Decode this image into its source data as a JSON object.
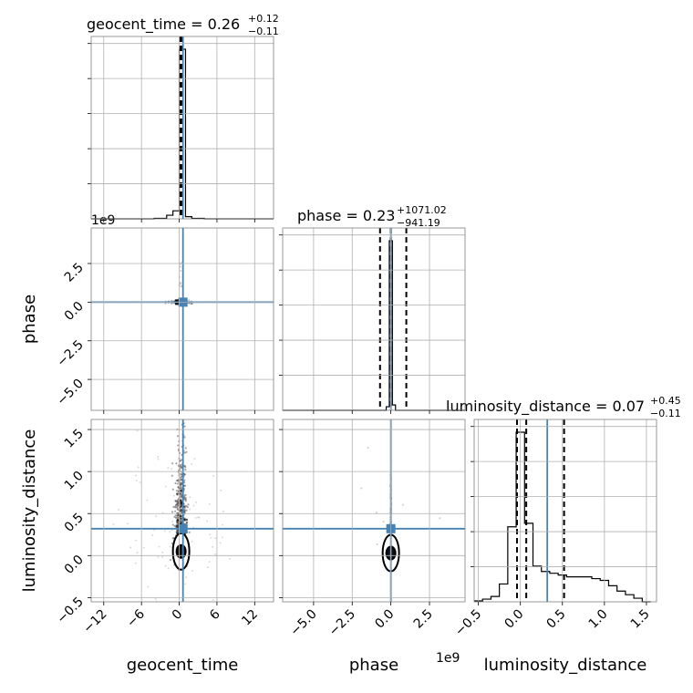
{
  "chart_data": {
    "type": "corner",
    "parameters": [
      "geocent_time",
      "phase",
      "luminosity_distance"
    ],
    "truth_color": "#4682b4",
    "hist_color": "#000000",
    "titles": [
      {
        "name": "geocent_time",
        "median": "0.26",
        "plus": "+0.12",
        "minus": "−0.11"
      },
      {
        "name": "phase",
        "median": "0.23",
        "plus": "+1071.02",
        "minus": "−941.19"
      },
      {
        "name": "luminosity_distance",
        "median": "0.07",
        "plus": "+0.45",
        "minus": "−0.11"
      }
    ],
    "offset_labels": {
      "phase_axis": "1e9"
    },
    "truths": {
      "geocent_time": 0.6,
      "phase": 0.0,
      "luminosity_distance": 0.32
    },
    "axes": {
      "geocent_time": {
        "lim": [
          -14,
          15
        ],
        "ticks": [
          -12,
          -6,
          0,
          6,
          12
        ],
        "tick_labels": [
          "−12",
          "−6",
          "0",
          "6",
          "12"
        ]
      },
      "phase": {
        "lim": [
          -7.0,
          4.8
        ],
        "ticks": [
          -5.0,
          -2.5,
          0.0,
          2.5
        ],
        "tick_labels": [
          "−5.0",
          "−2.5",
          "0.0",
          "2.5"
        ]
      },
      "luminosity_distance": {
        "lim": [
          -0.55,
          1.62
        ],
        "ticks": [
          -0.5,
          0.0,
          0.5,
          1.0,
          1.5
        ],
        "tick_labels": [
          "−0.5",
          "0.0",
          "0.5",
          "1.0",
          "1.5"
        ]
      }
    },
    "histograms": {
      "geocent_time": {
        "edges": [
          -14,
          -12,
          -10,
          -8,
          -6,
          -4,
          -2,
          -1,
          0,
          1,
          2,
          4,
          6,
          8,
          10,
          12,
          15
        ],
        "counts": [
          0,
          0,
          0,
          0,
          0,
          0.003,
          0.02,
          0.045,
          0.95,
          0.012,
          0.003,
          0,
          0,
          0,
          0,
          0
        ],
        "quantiles": [
          0.15,
          0.26,
          0.38
        ]
      },
      "phase": {
        "edges": [
          -7.0,
          -0.3,
          -0.1,
          0.1,
          0.3,
          4.8
        ],
        "counts": [
          0,
          0.02,
          0.95,
          0.03,
          0
        ],
        "quantiles": [
          -0.7,
          0.0,
          1.0
        ]
      },
      "luminosity_distance": {
        "edges": [
          -0.55,
          -0.45,
          -0.35,
          -0.25,
          -0.15,
          -0.05,
          0.05,
          0.15,
          0.25,
          0.35,
          0.45,
          0.55,
          0.65,
          0.75,
          0.85,
          0.95,
          1.05,
          1.15,
          1.25,
          1.35,
          1.45,
          1.55
        ],
        "counts": [
          0.005,
          0.015,
          0.03,
          0.1,
          0.42,
          0.95,
          0.44,
          0.2,
          0.17,
          0.16,
          0.15,
          0.14,
          0.14,
          0.14,
          0.13,
          0.12,
          0.09,
          0.06,
          0.04,
          0.02,
          0.0
        ],
        "quantiles": [
          -0.04,
          0.07,
          0.52
        ]
      }
    }
  }
}
